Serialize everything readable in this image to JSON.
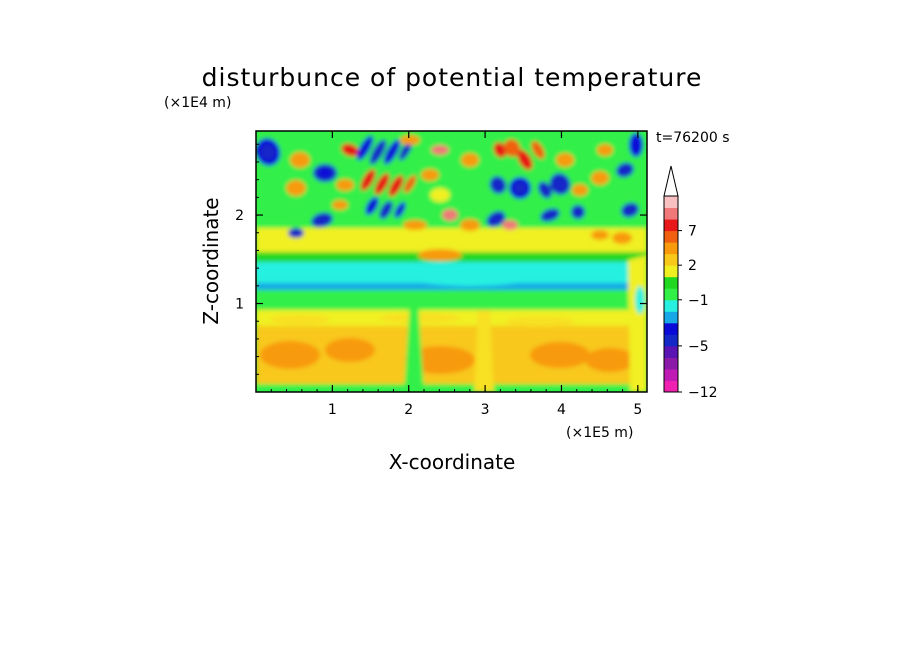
{
  "chart_data": {
    "type": "heatmap",
    "title": "disturbunce of potential temperature",
    "xlabel": "X-coordinate",
    "ylabel": "Z-coordinate",
    "x_unit_label": "(×1E5 m)",
    "y_unit_label": "(×1E4 m)",
    "time_label": "t=76200 s",
    "xlim": [
      0,
      5.12
    ],
    "ylim": [
      0,
      2.95
    ],
    "xticks": [
      1,
      2,
      3,
      4,
      5
    ],
    "yticks": [
      1,
      2
    ],
    "colorbar": {
      "levels": [
        -12,
        -10,
        -8,
        -6,
        -5,
        -4,
        -3,
        -2,
        -1,
        0,
        1,
        2,
        3,
        5,
        7,
        9,
        11
      ],
      "colors": [
        "#f020b0",
        "#c01ab4",
        "#8c1aa8",
        "#5a14b4",
        "#1428c8",
        "#0a0ad8",
        "#18a8e8",
        "#28f0e0",
        "#30f048",
        "#20d820",
        "#f0f020",
        "#f8c81a",
        "#f89a0c",
        "#f06010",
        "#e81818",
        "#f07878",
        "#f8c0c0"
      ],
      "tick_labels": [
        "-12",
        "-5",
        "-1",
        "2",
        "7"
      ],
      "extend": "max"
    }
  }
}
